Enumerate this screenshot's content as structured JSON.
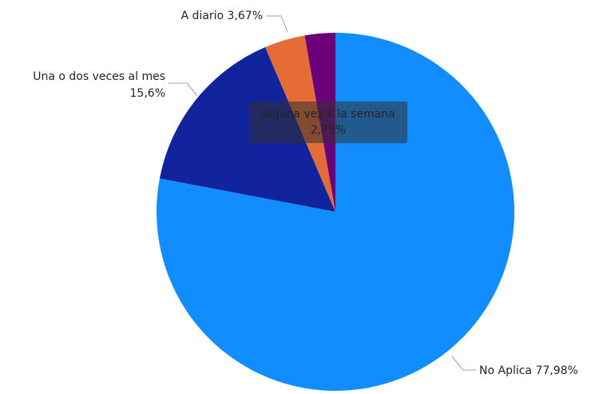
{
  "chart_data": {
    "type": "pie",
    "categories": [
      "No Aplica",
      "Una o dos veces al mes",
      "A diario",
      "Alguna vez a la semana"
    ],
    "values": [
      77.98,
      15.6,
      3.67,
      2.75
    ],
    "value_labels": [
      "77,98%",
      "15,6%",
      "3,67%",
      "2,75%"
    ],
    "colors": [
      "#118dff",
      "#12239e",
      "#e66c37",
      "#6b007b"
    ]
  }
}
